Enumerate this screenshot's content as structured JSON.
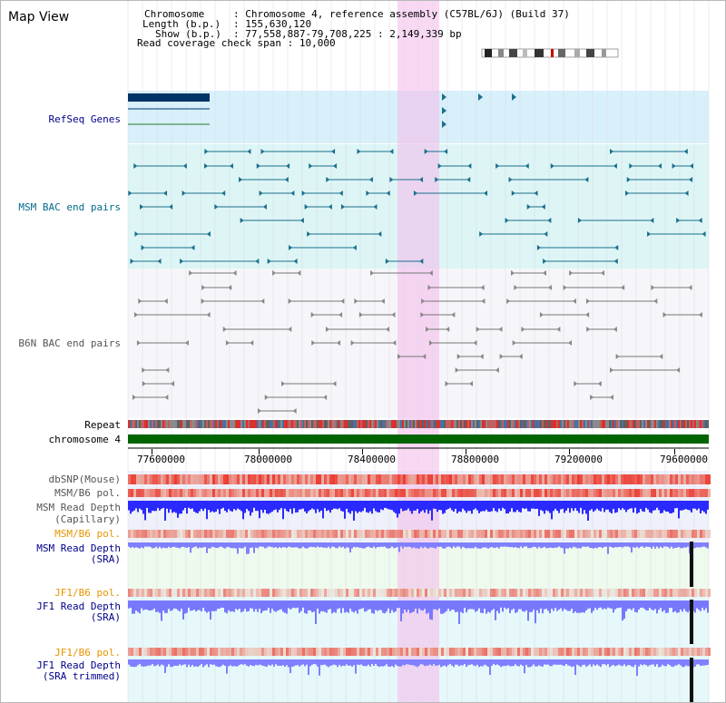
{
  "title": "Map View",
  "header": {
    "chromosome_key": "Chromosome",
    "chromosome_val": "Chromosome 4, reference assembly (C57BL/6J) (Build 37)",
    "length_key": "Length (b.p.)",
    "length_val": "155,630,120",
    "show_key": "Show (b.p.)",
    "show_val": "77,558,887-79,708,225 : 2,149,339 bp",
    "coverage_key": "Read coverage check span",
    "coverage_val": "10,000"
  },
  "tracks": {
    "refseq": "RefSeq Genes",
    "msm_bac": "MSM BAC end pairs",
    "b6n_bac": "B6N BAC end pairs",
    "repeat": "Repeat",
    "chromosome": "chromosome 4",
    "dbsnp": "dbSNP(Mouse)",
    "msm_b6_pol_1": "MSM/B6 pol.",
    "msm_read_depth_cap_1": "MSM Read Depth",
    "msm_read_depth_cap_2": "(Capillary)",
    "msm_b6_pol_2": "MSM/B6 pol.",
    "msm_read_depth_sra_1": "MSM Read Depth",
    "msm_read_depth_sra_2": "(SRA)",
    "jf1_b6_pol_1": "JF1/B6 pol.",
    "jf1_read_depth_sra_1": "JF1 Read Depth",
    "jf1_read_depth_sra_2": "(SRA)",
    "jf1_b6_pol_2": "JF1/B6 pol.",
    "jf1_read_depth_trim_1": "JF1 Read Depth",
    "jf1_read_depth_trim_2": "(SRA trimmed)"
  },
  "axis": {
    "ticks": [
      "77600000",
      "78000000",
      "78400000",
      "78800000",
      "79200000",
      "79600000"
    ]
  },
  "colors": {
    "refseq_bg": "#d8f0fa",
    "msm_bg": "#ddf5f5",
    "b6n_bg": "#f4f4f8",
    "highlight": "#f8d8f0",
    "chromosome_bar": "#006400",
    "gene": "#003366",
    "msm_feature": "#1a6f8c",
    "b6n_feature": "#777777",
    "snp": "#e83030",
    "depth": "#2a2aff",
    "sra_depth": "#8080ff",
    "label_blue": "#00008b",
    "label_orange": "#e69500"
  }
}
